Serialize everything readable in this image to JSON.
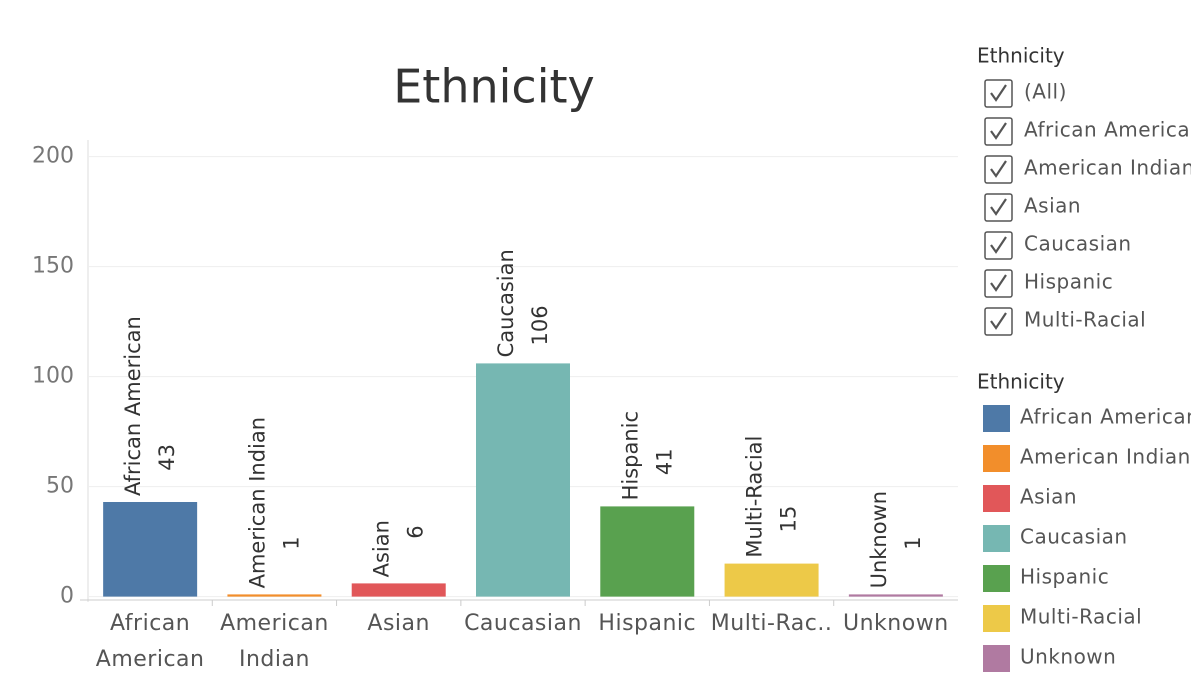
{
  "chart_data": {
    "type": "bar",
    "title": "Ethnicity",
    "categories": [
      "African American",
      "American Indian",
      "Asian",
      "Caucasian",
      "Hispanic",
      "Multi-Rac..",
      "Unknown"
    ],
    "values": [
      43,
      1,
      6,
      106,
      41,
      15,
      1
    ],
    "colors": [
      "#4e79a7",
      "#f28e2b",
      "#e15759",
      "#76b7b2",
      "#59a14f",
      "#edc948",
      "#b07aa1"
    ],
    "ylim": [
      -2,
      208
    ],
    "yticks": [
      0,
      50,
      100,
      150,
      200
    ],
    "grid": true,
    "legend": {
      "title": "Ethnicity",
      "position": "right",
      "items": [
        "African American",
        "American Indian",
        "Asian",
        "Caucasian",
        "Hispanic",
        "Multi-Racial",
        "Unknown"
      ]
    }
  },
  "filter": {
    "title": "Ethnicity",
    "items": [
      "(All)",
      "African American",
      "American Indian",
      "Asian",
      "Caucasian",
      "Hispanic",
      "Multi-Racial"
    ]
  }
}
